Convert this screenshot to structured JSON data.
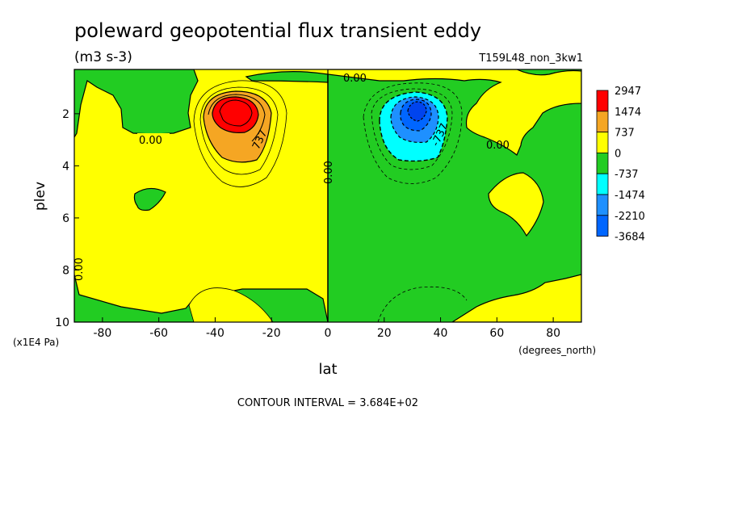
{
  "title": "poleward geopotential flux transient eddy",
  "units": "(m3 s-3)",
  "run_label": "T159L48_non_3kw1",
  "contour_interval_text": "CONTOUR INTERVAL = 3.684E+02",
  "colors": {
    "red": "#ff0000",
    "orange": "#f5a623",
    "yellow": "#ffff00",
    "green": "#22cc22",
    "cyan": "#00ffff",
    "mid_blue": "#1e90ff",
    "blue": "#0066ff",
    "deep_blue": "#0044ee"
  },
  "chart_data": {
    "type": "heatmap",
    "title": "poleward geopotential flux transient eddy",
    "subtitle": "(m3 s-3)",
    "xlabel": "lat",
    "x_units": "(degrees_north)",
    "ylabel": "plev",
    "y_units": "(x1E4 Pa)",
    "xlim": [
      -90,
      90
    ],
    "ylim": [
      10,
      0.3
    ],
    "x_ticks": [
      -80,
      -60,
      -40,
      -20,
      0,
      20,
      40,
      60,
      80
    ],
    "x_tick_labels": [
      "-80",
      "-60",
      "-40",
      "-20",
      "0",
      "20",
      "40",
      "60",
      "80"
    ],
    "y_ticks": [
      2,
      4,
      6,
      8,
      10
    ],
    "y_tick_labels": [
      "2",
      "4",
      "6",
      "8",
      "10"
    ],
    "contour_interval": 368.4,
    "legend": {
      "placement": "right",
      "levels": [
        "2947",
        "1474",
        "737",
        "0",
        "-737",
        "-1474",
        "-2210",
        "-3684"
      ],
      "colors": [
        "#ff0000",
        "#f5a623",
        "#ffff00",
        "#22cc22",
        "#00ffff",
        "#1e90ff",
        "#0066ff"
      ]
    },
    "contour_labels": [
      "0.00",
      "0.00",
      "0.00",
      "0.00",
      "0.00",
      "737",
      "-737"
    ],
    "features": [
      {
        "kind": "max",
        "lat": -32,
        "plev": 1.5,
        "value": 2947
      },
      {
        "kind": "min",
        "lat": 32,
        "plev": 1.5,
        "value": -3684
      }
    ]
  }
}
